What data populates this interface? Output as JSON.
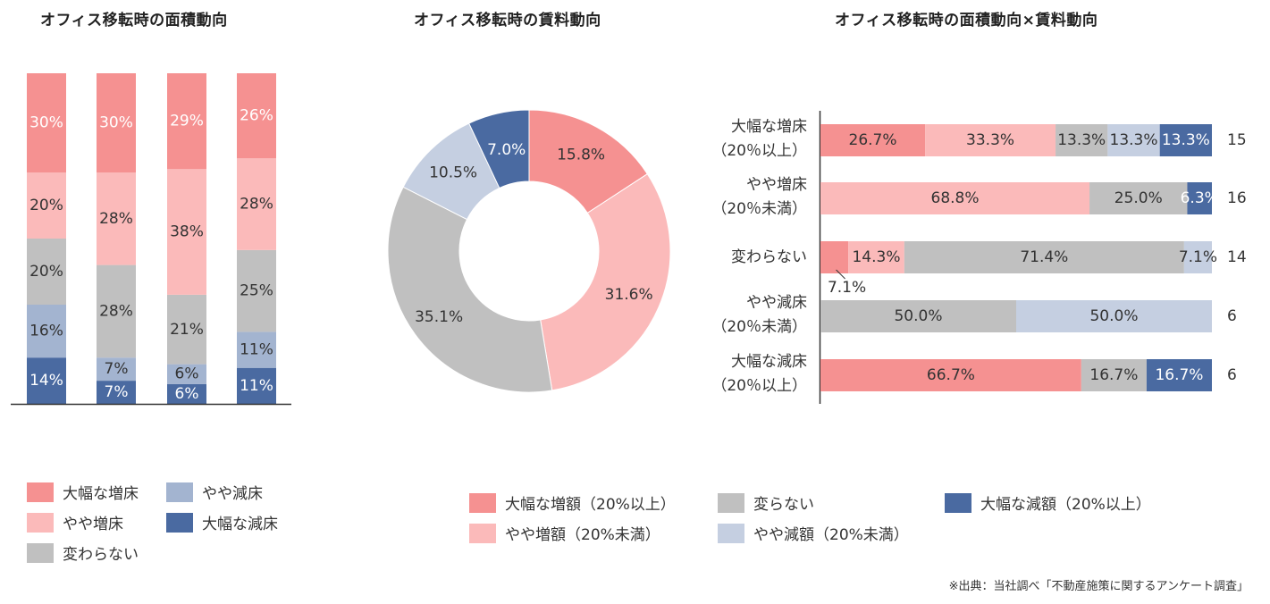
{
  "titles": {
    "area": "オフィス移転時の面積動向",
    "rent": "オフィス移転時の賃料動向",
    "cross": "オフィス移転時の面積動向×賃料動向"
  },
  "colors": {
    "dark_pink": "#f59191",
    "light_pink": "#fbbaba",
    "gray": "#c0c0c0",
    "light_blue": "#a3b4d0",
    "pale_blue": "#c5cfe1",
    "dark_blue": "#4a6aa1"
  },
  "chart_data": [
    {
      "type": "bar",
      "stacked": true,
      "orientation": "vertical",
      "title": "オフィス移転時の面積動向",
      "categories": [
        "",
        "",
        "",
        ""
      ],
      "ylim": [
        0,
        100
      ],
      "legend_position": "bottom-left",
      "series": [
        {
          "name": "大幅な減床",
          "color": "#4a6aa1",
          "values": [
            14,
            7,
            6,
            11
          ],
          "labels": [
            "14%",
            "7%",
            "6%",
            "11%"
          ]
        },
        {
          "name": "やや減床",
          "color": "#a3b4d0",
          "values": [
            16,
            7,
            6,
            11
          ],
          "labels": [
            "16%",
            "7%",
            "6%",
            "11%"
          ]
        },
        {
          "name": "変わらない",
          "color": "#c0c0c0",
          "values": [
            20,
            28,
            21,
            25
          ],
          "labels": [
            "20%",
            "28%",
            "21%",
            "25%"
          ]
        },
        {
          "name": "やや増床",
          "color": "#fbbaba",
          "values": [
            20,
            28,
            38,
            28
          ],
          "labels": [
            "20%",
            "28%",
            "38%",
            "28%"
          ]
        },
        {
          "name": "大幅な増床",
          "color": "#f59191",
          "values": [
            30,
            30,
            29,
            26
          ],
          "labels": [
            "30%",
            "30%",
            "29%",
            "26%"
          ]
        }
      ]
    },
    {
      "type": "pie",
      "donut": true,
      "title": "オフィス移転時の賃料動向",
      "legend_position": "bottom",
      "slices": [
        {
          "name": "大幅な増額（20%以上）",
          "value": 15.8,
          "label": "15.8%",
          "color": "#f59191"
        },
        {
          "name": "やや増額（20%未満）",
          "value": 31.6,
          "label": "31.6%",
          "color": "#fbbaba"
        },
        {
          "name": "変らない",
          "value": 35.1,
          "label": "35.1%",
          "color": "#c0c0c0"
        },
        {
          "name": "やや減額（20%未満）",
          "value": 10.5,
          "label": "10.5%",
          "color": "#c5cfe1"
        },
        {
          "name": "大幅な減額（20%以上）",
          "value": 7.0,
          "label": "7.0%",
          "color": "#4a6aa1"
        }
      ]
    },
    {
      "type": "bar",
      "stacked": true,
      "orientation": "horizontal",
      "title": "オフィス移転時の面積動向×賃料動向",
      "xlim": [
        0,
        100
      ],
      "rows": [
        {
          "label": [
            "大幅な増床",
            "（20％以上）"
          ],
          "n": "15",
          "segments": [
            {
              "value": 26.7,
              "label": "26.7%",
              "color": "#f59191",
              "text_color": "#333333"
            },
            {
              "value": 33.3,
              "label": "33.3%",
              "color": "#fbbaba",
              "text_color": "#333333"
            },
            {
              "value": 13.3,
              "label": "13.3%",
              "color": "#c0c0c0",
              "text_color": "#333333"
            },
            {
              "value": 13.3,
              "label": "13.3%",
              "color": "#c5cfe1",
              "text_color": "#333333"
            },
            {
              "value": 13.3,
              "label": "13.3%",
              "color": "#4a6aa1",
              "text_color": "#ffffff"
            }
          ]
        },
        {
          "label": [
            "やや増床",
            "（20％未満）"
          ],
          "n": "16",
          "segments": [
            {
              "value": 68.8,
              "label": "68.8%",
              "color": "#fbbaba",
              "text_color": "#333333"
            },
            {
              "value": 25.0,
              "label": "25.0%",
              "color": "#c0c0c0",
              "text_color": "#333333"
            },
            {
              "value": 6.3,
              "label": "6.3%",
              "color": "#4a6aa1",
              "text_color": "#ffffff"
            }
          ]
        },
        {
          "label": [
            "変わらない"
          ],
          "n": "14",
          "segments": [
            {
              "value": 7.1,
              "label": "7.1%",
              "color": "#f59191",
              "text_color": "#333333",
              "callout": true
            },
            {
              "value": 14.3,
              "label": "14.3%",
              "color": "#fbbaba",
              "text_color": "#333333"
            },
            {
              "value": 71.4,
              "label": "71.4%",
              "color": "#c0c0c0",
              "text_color": "#333333"
            },
            {
              "value": 7.1,
              "label": "7.1%",
              "color": "#c5cfe1",
              "text_color": "#333333"
            }
          ]
        },
        {
          "label": [
            "やや減床",
            "（20％未満）"
          ],
          "n": "6",
          "segments": [
            {
              "value": 50.0,
              "label": "50.0%",
              "color": "#c0c0c0",
              "text_color": "#333333"
            },
            {
              "value": 50.0,
              "label": "50.0%",
              "color": "#c5cfe1",
              "text_color": "#333333"
            }
          ]
        },
        {
          "label": [
            "大幅な減床",
            "（20％以上）"
          ],
          "n": "6",
          "segments": [
            {
              "value": 66.7,
              "label": "66.7%",
              "color": "#f59191",
              "text_color": "#333333"
            },
            {
              "value": 16.7,
              "label": "16.7%",
              "color": "#c0c0c0",
              "text_color": "#333333"
            },
            {
              "value": 16.7,
              "label": "16.7%",
              "color": "#4a6aa1",
              "text_color": "#ffffff"
            }
          ]
        }
      ]
    }
  ],
  "legend_area": [
    {
      "label": "大幅な増床",
      "color": "#f59191"
    },
    {
      "label": "やや増床",
      "color": "#fbbaba"
    },
    {
      "label": "変わらない",
      "color": "#c0c0c0"
    },
    {
      "label": "やや減床",
      "color": "#a3b4d0"
    },
    {
      "label": "大幅な減床",
      "color": "#4a6aa1"
    }
  ],
  "legend_rent": [
    {
      "label": "大幅な増額（20%以上）",
      "color": "#f59191"
    },
    {
      "label": "やや増額（20%未満）",
      "color": "#fbbaba"
    },
    {
      "label": "変らない",
      "color": "#c0c0c0"
    },
    {
      "label": "やや減額（20%未満）",
      "color": "#c5cfe1"
    },
    {
      "label": "大幅な減額（20%以上）",
      "color": "#4a6aa1"
    }
  ],
  "source": "※出典：当社調べ「不動産施策に関するアンケート調査」"
}
